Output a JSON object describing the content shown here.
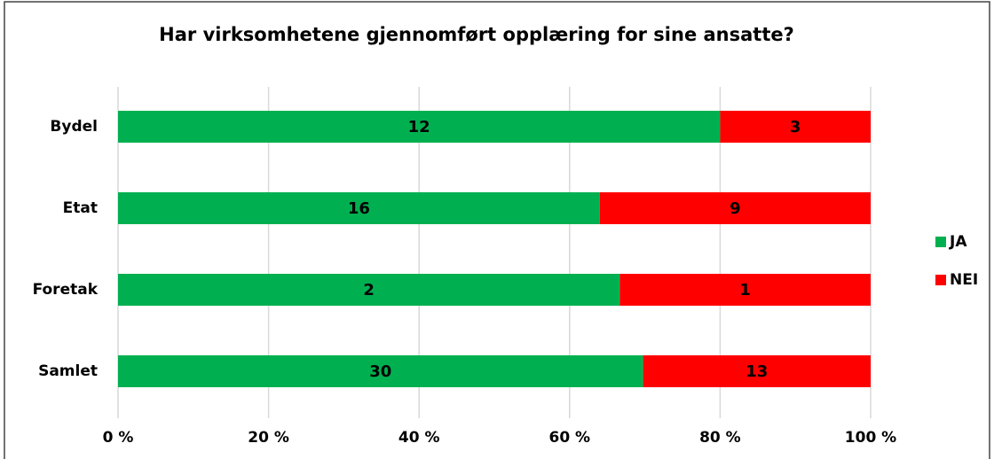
{
  "chart_data": {
    "type": "bar",
    "orientation": "horizontal",
    "stack": "percent",
    "title": "Har virksomhetene gjennomført opplæring for sine ansatte?",
    "categories": [
      "Bydel",
      "Etat",
      "Foretak",
      "Samlet"
    ],
    "series": [
      {
        "name": "JA",
        "color": "#00b050",
        "values": [
          12,
          16,
          2,
          30
        ]
      },
      {
        "name": "NEI",
        "color": "#ff0000",
        "values": [
          3,
          9,
          1,
          13
        ]
      }
    ],
    "xlim": [
      0,
      100
    ],
    "xticks": [
      {
        "value": 0,
        "label": "0 %"
      },
      {
        "value": 20,
        "label": "20 %"
      },
      {
        "value": 40,
        "label": "40 %"
      },
      {
        "value": 60,
        "label": "60 %"
      },
      {
        "value": 80,
        "label": "80 %"
      },
      {
        "value": 100,
        "label": "100 %"
      }
    ],
    "grid": true,
    "legend": "right"
  }
}
